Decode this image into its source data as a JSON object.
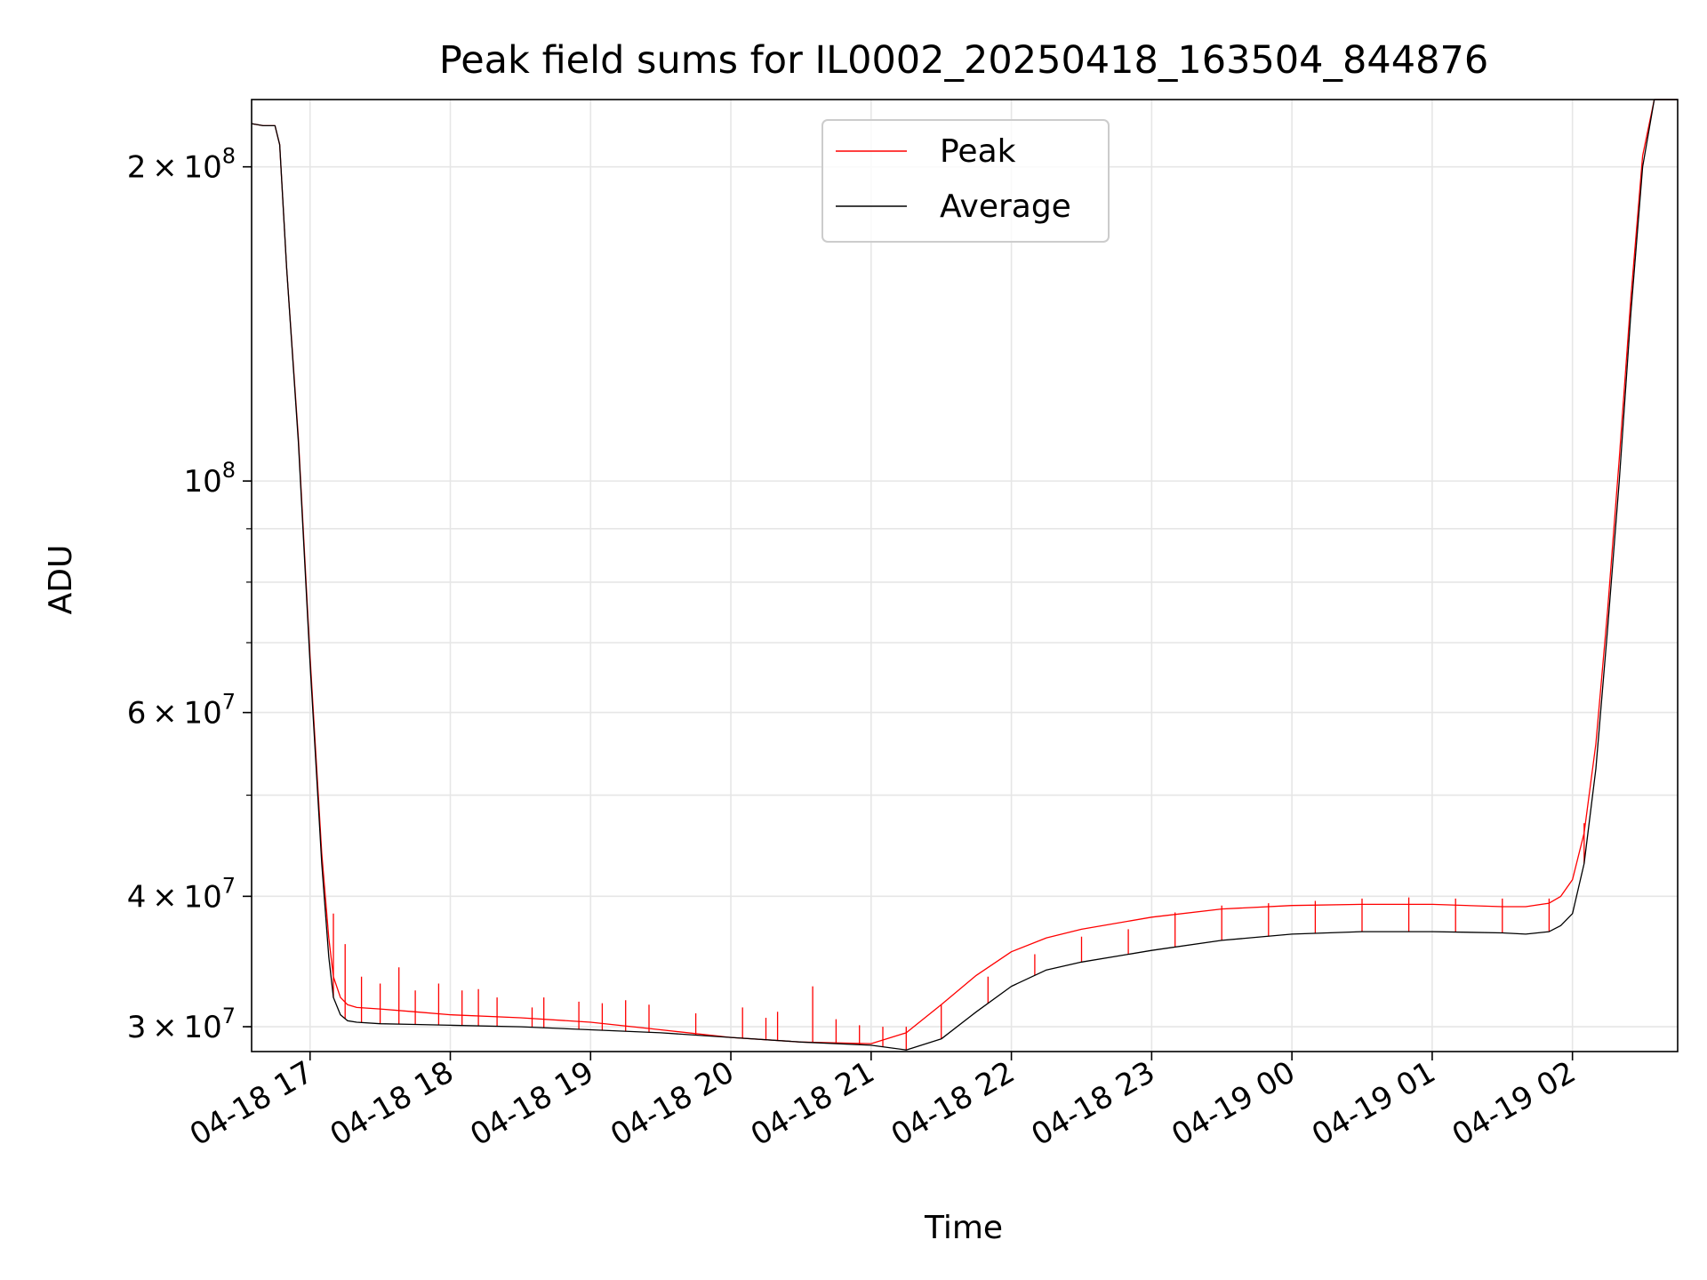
{
  "chart_data": {
    "type": "line",
    "title": "Peak field sums for IL0002_20250418_163504_844876",
    "xlabel": "Time",
    "ylabel": "ADU",
    "yscale": "log",
    "xlim": [
      "2025-04-18 16:35",
      "2025-04-19 02:45"
    ],
    "ylim": [
      28400000,
      232000000
    ],
    "x_ticks": [
      "04-18 17",
      "04-18 18",
      "04-18 19",
      "04-18 20",
      "04-18 21",
      "04-18 22",
      "04-18 23",
      "04-19 00",
      "04-19 01",
      "04-19 02"
    ],
    "y_ticks": [
      {
        "value": 30000000,
        "mantissa": "3",
        "base": "10",
        "exp": "7"
      },
      {
        "value": 40000000,
        "mantissa": "4",
        "base": "10",
        "exp": "7"
      },
      {
        "value": 60000000,
        "mantissa": "6",
        "base": "10",
        "exp": "7"
      },
      {
        "value": 100000000,
        "mantissa": "",
        "base": "10",
        "exp": "8"
      },
      {
        "value": 200000000,
        "mantissa": "2",
        "base": "10",
        "exp": "8"
      }
    ],
    "grid": true,
    "legend": {
      "placement": "top-center"
    },
    "series": [
      {
        "name": "Peak",
        "color": "#ff0000",
        "x": [
          "2025-04-18 16:35",
          "2025-04-18 16:40",
          "2025-04-18 16:45",
          "2025-04-18 16:47",
          "2025-04-18 16:50",
          "2025-04-18 16:55",
          "2025-04-18 17:00",
          "2025-04-18 17:05",
          "2025-04-18 17:08",
          "2025-04-18 17:10",
          "2025-04-18 17:13",
          "2025-04-18 17:16",
          "2025-04-18 17:20",
          "2025-04-18 17:30",
          "2025-04-18 17:45",
          "2025-04-18 18:00",
          "2025-04-18 18:30",
          "2025-04-18 19:00",
          "2025-04-18 19:30",
          "2025-04-18 20:00",
          "2025-04-18 20:30",
          "2025-04-18 21:00",
          "2025-04-18 21:15",
          "2025-04-18 21:30",
          "2025-04-18 21:45",
          "2025-04-18 22:00",
          "2025-04-18 22:15",
          "2025-04-18 22:30",
          "2025-04-18 23:00",
          "2025-04-18 23:30",
          "2025-04-19 00:00",
          "2025-04-19 00:30",
          "2025-04-19 01:00",
          "2025-04-19 01:30",
          "2025-04-19 01:40",
          "2025-04-19 01:50",
          "2025-04-19 01:55",
          "2025-04-19 02:00",
          "2025-04-19 02:05",
          "2025-04-19 02:10",
          "2025-04-19 02:15",
          "2025-04-19 02:20",
          "2025-04-19 02:25",
          "2025-04-19 02:30",
          "2025-04-19 02:35",
          "2025-04-19 02:45"
        ],
        "values": [
          220000000,
          219000000,
          219000000,
          210000000,
          160000000,
          110000000,
          68000000,
          44000000,
          36500000,
          33500000,
          32000000,
          31500000,
          31300000,
          31200000,
          31000000,
          30800000,
          30600000,
          30300000,
          29800000,
          29300000,
          29000000,
          28900000,
          29600000,
          31500000,
          33600000,
          35400000,
          36500000,
          37200000,
          38200000,
          38900000,
          39200000,
          39300000,
          39300000,
          39100000,
          39100000,
          39400000,
          40000000,
          41500000,
          46000000,
          56000000,
          75000000,
          105000000,
          150000000,
          205000000,
          232000000,
          232000000
        ]
      },
      {
        "name": "Average",
        "color": "#000000",
        "x": [
          "2025-04-18 16:35",
          "2025-04-18 16:40",
          "2025-04-18 16:45",
          "2025-04-18 16:47",
          "2025-04-18 16:50",
          "2025-04-18 16:55",
          "2025-04-18 17:00",
          "2025-04-18 17:05",
          "2025-04-18 17:08",
          "2025-04-18 17:10",
          "2025-04-18 17:13",
          "2025-04-18 17:16",
          "2025-04-18 17:20",
          "2025-04-18 17:30",
          "2025-04-18 17:45",
          "2025-04-18 18:00",
          "2025-04-18 18:30",
          "2025-04-18 19:00",
          "2025-04-18 19:30",
          "2025-04-18 20:00",
          "2025-04-18 20:30",
          "2025-04-18 21:00",
          "2025-04-18 21:15",
          "2025-04-18 21:30",
          "2025-04-18 21:45",
          "2025-04-18 22:00",
          "2025-04-18 22:15",
          "2025-04-18 22:30",
          "2025-04-18 23:00",
          "2025-04-18 23:30",
          "2025-04-19 00:00",
          "2025-04-19 00:30",
          "2025-04-19 01:00",
          "2025-04-19 01:30",
          "2025-04-19 01:40",
          "2025-04-19 01:50",
          "2025-04-19 01:55",
          "2025-04-19 02:00",
          "2025-04-19 02:05",
          "2025-04-19 02:10",
          "2025-04-19 02:15",
          "2025-04-19 02:20",
          "2025-04-19 02:25",
          "2025-04-19 02:30",
          "2025-04-19 02:35",
          "2025-04-19 02:45"
        ],
        "values": [
          220000000,
          219000000,
          219000000,
          210000000,
          160000000,
          109000000,
          67000000,
          43000000,
          35000000,
          32000000,
          30800000,
          30400000,
          30300000,
          30200000,
          30150000,
          30100000,
          30000000,
          29800000,
          29600000,
          29300000,
          29000000,
          28800000,
          28500000,
          29200000,
          31000000,
          32800000,
          34000000,
          34600000,
          35500000,
          36300000,
          36800000,
          37000000,
          37000000,
          36900000,
          36800000,
          37000000,
          37500000,
          38500000,
          43000000,
          53000000,
          72000000,
          100000000,
          145000000,
          200000000,
          232000000,
          232000000
        ]
      }
    ],
    "spikes": {
      "series": "Peak",
      "x": [
        "2025-04-18 17:10",
        "2025-04-18 17:15",
        "2025-04-18 17:22",
        "2025-04-18 17:30",
        "2025-04-18 17:38",
        "2025-04-18 17:45",
        "2025-04-18 17:55",
        "2025-04-18 18:05",
        "2025-04-18 18:12",
        "2025-04-18 18:20",
        "2025-04-18 18:35",
        "2025-04-18 18:40",
        "2025-04-18 18:55",
        "2025-04-18 19:05",
        "2025-04-18 19:15",
        "2025-04-18 19:25",
        "2025-04-18 19:45",
        "2025-04-18 20:05",
        "2025-04-18 20:15",
        "2025-04-18 20:20",
        "2025-04-18 20:35",
        "2025-04-18 20:45",
        "2025-04-18 20:55",
        "2025-04-18 21:05",
        "2025-04-18 21:15",
        "2025-04-18 21:30",
        "2025-04-18 21:50",
        "2025-04-18 22:10",
        "2025-04-18 22:30",
        "2025-04-18 22:50",
        "2025-04-18 23:10",
        "2025-04-18 23:30",
        "2025-04-18 23:50",
        "2025-04-19 00:10",
        "2025-04-19 00:30",
        "2025-04-19 00:50",
        "2025-04-19 01:10",
        "2025-04-19 01:30",
        "2025-04-19 01:50",
        "2025-04-19 02:05"
      ],
      "values": [
        38500000,
        36000000,
        33500000,
        33000000,
        34200000,
        32500000,
        33000000,
        32500000,
        32600000,
        32000000,
        31300000,
        32000000,
        31700000,
        31600000,
        31800000,
        31500000,
        30900000,
        31300000,
        30600000,
        31000000,
        32800000,
        30500000,
        30100000,
        30000000,
        30000000,
        31500000,
        33500000,
        35200000,
        36600000,
        37200000,
        38600000,
        39200000,
        39400000,
        39600000,
        39800000,
        39900000,
        39800000,
        39800000,
        39800000,
        47000000
      ]
    }
  }
}
